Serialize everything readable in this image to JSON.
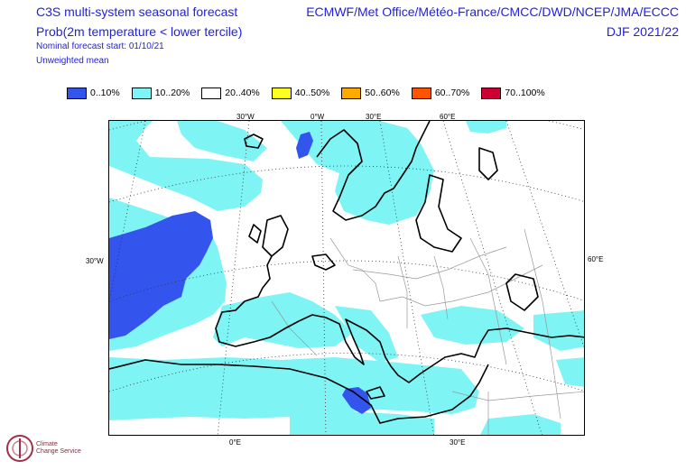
{
  "header": {
    "title_line1": "C3S multi-system seasonal forecast",
    "title_line2": "Prob(2m temperature < lower tercile)",
    "forecast_start": "Nominal forecast start: 01/10/21",
    "mean_type": "Unweighted mean",
    "centres": "ECMWF/Met Office/Météo-France/CMCC/DWD/NCEP/JMA/ECCC",
    "season": "DJF 2021/22"
  },
  "legend": [
    {
      "label": "0..10%",
      "color": "#3355ee"
    },
    {
      "label": "10..20%",
      "color": "#7ff4f4"
    },
    {
      "label": "20..40%",
      "color": "#ffffff"
    },
    {
      "label": "40..50%",
      "color": "#ffff22"
    },
    {
      "label": "50..60%",
      "color": "#ffaa00"
    },
    {
      "label": "60..70%",
      "color": "#ff5500"
    },
    {
      "label": "70..100%",
      "color": "#cc0033"
    }
  ],
  "grid_labels": {
    "top": [
      "30°W",
      "0°W",
      "30°E",
      "60°E"
    ],
    "left": [
      "30°W"
    ],
    "right": [
      "60°E"
    ],
    "bottom": [
      "0°E",
      "30°E"
    ]
  },
  "logo": {
    "name_line1": "Climate",
    "name_line2": "Change Service"
  }
}
